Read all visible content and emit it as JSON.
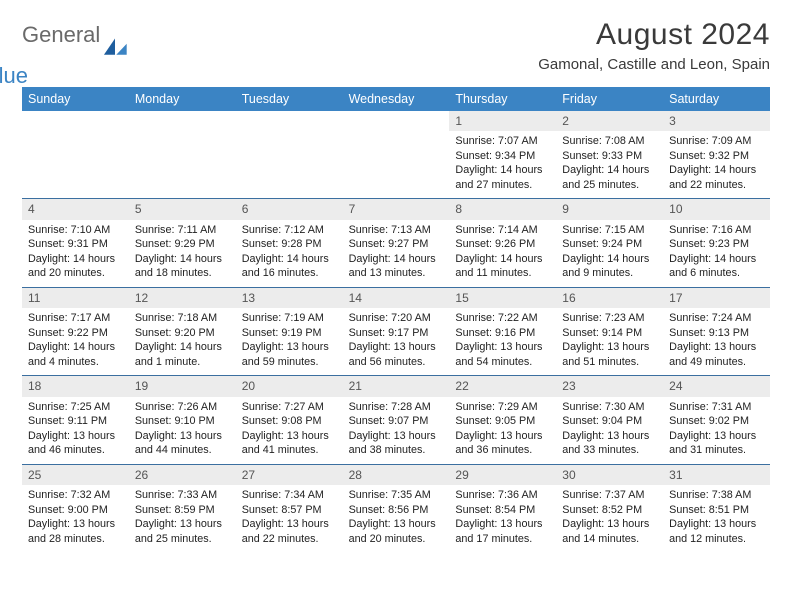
{
  "brand": {
    "word1": "General",
    "word2": "Blue"
  },
  "title": "August 2024",
  "location": "Gamonal, Castille and Leon, Spain",
  "colors": {
    "header_bg": "#3b84c4",
    "header_text": "#ffffff",
    "daynum_bg": "#ececec",
    "rule": "#3b6fa0"
  },
  "days_of_week": [
    "Sunday",
    "Monday",
    "Tuesday",
    "Wednesday",
    "Thursday",
    "Friday",
    "Saturday"
  ],
  "weeks": [
    [
      {
        "n": "",
        "sr": "",
        "ss": "",
        "dl": ""
      },
      {
        "n": "",
        "sr": "",
        "ss": "",
        "dl": ""
      },
      {
        "n": "",
        "sr": "",
        "ss": "",
        "dl": ""
      },
      {
        "n": "",
        "sr": "",
        "ss": "",
        "dl": ""
      },
      {
        "n": "1",
        "sr": "Sunrise: 7:07 AM",
        "ss": "Sunset: 9:34 PM",
        "dl": "Daylight: 14 hours and 27 minutes."
      },
      {
        "n": "2",
        "sr": "Sunrise: 7:08 AM",
        "ss": "Sunset: 9:33 PM",
        "dl": "Daylight: 14 hours and 25 minutes."
      },
      {
        "n": "3",
        "sr": "Sunrise: 7:09 AM",
        "ss": "Sunset: 9:32 PM",
        "dl": "Daylight: 14 hours and 22 minutes."
      }
    ],
    [
      {
        "n": "4",
        "sr": "Sunrise: 7:10 AM",
        "ss": "Sunset: 9:31 PM",
        "dl": "Daylight: 14 hours and 20 minutes."
      },
      {
        "n": "5",
        "sr": "Sunrise: 7:11 AM",
        "ss": "Sunset: 9:29 PM",
        "dl": "Daylight: 14 hours and 18 minutes."
      },
      {
        "n": "6",
        "sr": "Sunrise: 7:12 AM",
        "ss": "Sunset: 9:28 PM",
        "dl": "Daylight: 14 hours and 16 minutes."
      },
      {
        "n": "7",
        "sr": "Sunrise: 7:13 AM",
        "ss": "Sunset: 9:27 PM",
        "dl": "Daylight: 14 hours and 13 minutes."
      },
      {
        "n": "8",
        "sr": "Sunrise: 7:14 AM",
        "ss": "Sunset: 9:26 PM",
        "dl": "Daylight: 14 hours and 11 minutes."
      },
      {
        "n": "9",
        "sr": "Sunrise: 7:15 AM",
        "ss": "Sunset: 9:24 PM",
        "dl": "Daylight: 14 hours and 9 minutes."
      },
      {
        "n": "10",
        "sr": "Sunrise: 7:16 AM",
        "ss": "Sunset: 9:23 PM",
        "dl": "Daylight: 14 hours and 6 minutes."
      }
    ],
    [
      {
        "n": "11",
        "sr": "Sunrise: 7:17 AM",
        "ss": "Sunset: 9:22 PM",
        "dl": "Daylight: 14 hours and 4 minutes."
      },
      {
        "n": "12",
        "sr": "Sunrise: 7:18 AM",
        "ss": "Sunset: 9:20 PM",
        "dl": "Daylight: 14 hours and 1 minute."
      },
      {
        "n": "13",
        "sr": "Sunrise: 7:19 AM",
        "ss": "Sunset: 9:19 PM",
        "dl": "Daylight: 13 hours and 59 minutes."
      },
      {
        "n": "14",
        "sr": "Sunrise: 7:20 AM",
        "ss": "Sunset: 9:17 PM",
        "dl": "Daylight: 13 hours and 56 minutes."
      },
      {
        "n": "15",
        "sr": "Sunrise: 7:22 AM",
        "ss": "Sunset: 9:16 PM",
        "dl": "Daylight: 13 hours and 54 minutes."
      },
      {
        "n": "16",
        "sr": "Sunrise: 7:23 AM",
        "ss": "Sunset: 9:14 PM",
        "dl": "Daylight: 13 hours and 51 minutes."
      },
      {
        "n": "17",
        "sr": "Sunrise: 7:24 AM",
        "ss": "Sunset: 9:13 PM",
        "dl": "Daylight: 13 hours and 49 minutes."
      }
    ],
    [
      {
        "n": "18",
        "sr": "Sunrise: 7:25 AM",
        "ss": "Sunset: 9:11 PM",
        "dl": "Daylight: 13 hours and 46 minutes."
      },
      {
        "n": "19",
        "sr": "Sunrise: 7:26 AM",
        "ss": "Sunset: 9:10 PM",
        "dl": "Daylight: 13 hours and 44 minutes."
      },
      {
        "n": "20",
        "sr": "Sunrise: 7:27 AM",
        "ss": "Sunset: 9:08 PM",
        "dl": "Daylight: 13 hours and 41 minutes."
      },
      {
        "n": "21",
        "sr": "Sunrise: 7:28 AM",
        "ss": "Sunset: 9:07 PM",
        "dl": "Daylight: 13 hours and 38 minutes."
      },
      {
        "n": "22",
        "sr": "Sunrise: 7:29 AM",
        "ss": "Sunset: 9:05 PM",
        "dl": "Daylight: 13 hours and 36 minutes."
      },
      {
        "n": "23",
        "sr": "Sunrise: 7:30 AM",
        "ss": "Sunset: 9:04 PM",
        "dl": "Daylight: 13 hours and 33 minutes."
      },
      {
        "n": "24",
        "sr": "Sunrise: 7:31 AM",
        "ss": "Sunset: 9:02 PM",
        "dl": "Daylight: 13 hours and 31 minutes."
      }
    ],
    [
      {
        "n": "25",
        "sr": "Sunrise: 7:32 AM",
        "ss": "Sunset: 9:00 PM",
        "dl": "Daylight: 13 hours and 28 minutes."
      },
      {
        "n": "26",
        "sr": "Sunrise: 7:33 AM",
        "ss": "Sunset: 8:59 PM",
        "dl": "Daylight: 13 hours and 25 minutes."
      },
      {
        "n": "27",
        "sr": "Sunrise: 7:34 AM",
        "ss": "Sunset: 8:57 PM",
        "dl": "Daylight: 13 hours and 22 minutes."
      },
      {
        "n": "28",
        "sr": "Sunrise: 7:35 AM",
        "ss": "Sunset: 8:56 PM",
        "dl": "Daylight: 13 hours and 20 minutes."
      },
      {
        "n": "29",
        "sr": "Sunrise: 7:36 AM",
        "ss": "Sunset: 8:54 PM",
        "dl": "Daylight: 13 hours and 17 minutes."
      },
      {
        "n": "30",
        "sr": "Sunrise: 7:37 AM",
        "ss": "Sunset: 8:52 PM",
        "dl": "Daylight: 13 hours and 14 minutes."
      },
      {
        "n": "31",
        "sr": "Sunrise: 7:38 AM",
        "ss": "Sunset: 8:51 PM",
        "dl": "Daylight: 13 hours and 12 minutes."
      }
    ]
  ]
}
